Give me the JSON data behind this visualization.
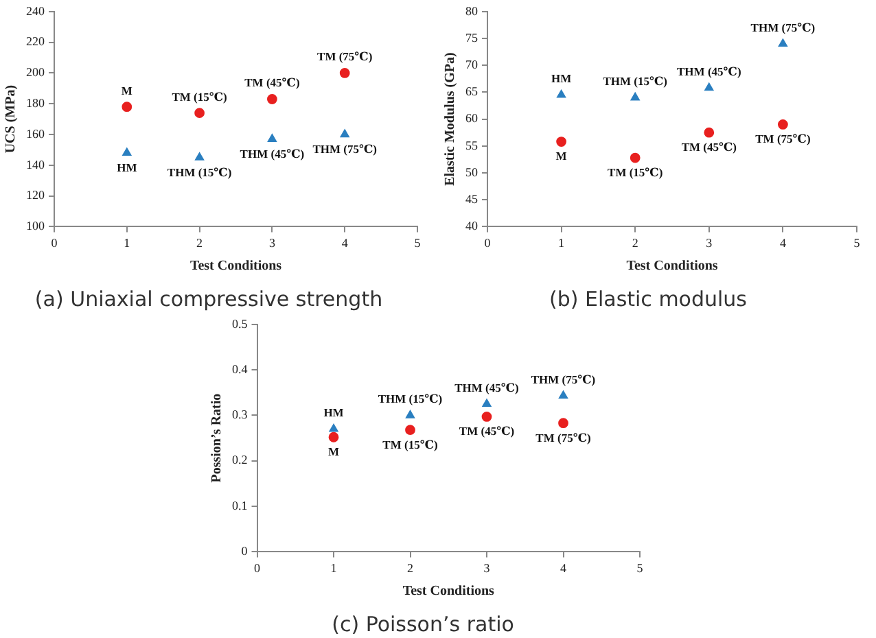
{
  "chart_data": [
    {
      "type": "scatter",
      "title": "(a) Uniaxial compressive strength",
      "xlabel": "Test Conditions",
      "ylabel": "UCS (MPa)",
      "x": [
        1,
        2,
        3,
        4
      ],
      "series": [
        {
          "color": "#e8201f",
          "marker": "circle",
          "values": [
            178,
            174,
            183,
            200
          ]
        },
        {
          "color": "#2a7fc0",
          "marker": "triangle",
          "values": [
            148,
            145,
            157,
            160
          ]
        }
      ],
      "xlim": [
        0,
        5
      ],
      "xticks": [
        0,
        1,
        2,
        3,
        4,
        5
      ],
      "ylim": [
        100,
        240
      ],
      "yticks": [
        100,
        120,
        140,
        160,
        180,
        200,
        220,
        240
      ],
      "grid": false,
      "legend": false,
      "annotations": [
        {
          "text": "M",
          "x": 1,
          "y": 178
        },
        {
          "text": "TM (15℃)",
          "x": 2,
          "y": 174
        },
        {
          "text": "TM (45℃)",
          "x": 3,
          "y": 183
        },
        {
          "text": "TM (75℃)",
          "x": 4,
          "y": 200
        },
        {
          "text": "HM",
          "x": 1,
          "y": 148
        },
        {
          "text": "THM (15℃)",
          "x": 2,
          "y": 145
        },
        {
          "text": "THM (45℃)",
          "x": 3,
          "y": 157
        },
        {
          "text": "THM (75℃)",
          "x": 4,
          "y": 160
        }
      ]
    },
    {
      "type": "scatter",
      "title": "(b) Elastic modulus",
      "xlabel": "Test Conditions",
      "ylabel": "Elastic Modulus (GPa)",
      "x": [
        1,
        2,
        3,
        4
      ],
      "series": [
        {
          "color": "#e8201f",
          "marker": "circle",
          "values": [
            55.8,
            52.8,
            57.5,
            59
          ]
        },
        {
          "color": "#2a7fc0",
          "marker": "triangle",
          "values": [
            64.5,
            64,
            65.8,
            74
          ]
        }
      ],
      "xlim": [
        0,
        5
      ],
      "xticks": [
        0,
        1,
        2,
        3,
        4,
        5
      ],
      "ylim": [
        40,
        80
      ],
      "yticks": [
        40,
        45,
        50,
        55,
        60,
        65,
        70,
        75,
        80
      ],
      "grid": false,
      "legend": false,
      "annotations": [
        {
          "text": "M",
          "x": 1,
          "y": 55.8
        },
        {
          "text": "TM (15℃)",
          "x": 2,
          "y": 52.8
        },
        {
          "text": "TM (45℃)",
          "x": 3,
          "y": 57.5
        },
        {
          "text": "TM (75℃)",
          "x": 4,
          "y": 59
        },
        {
          "text": "HM",
          "x": 1,
          "y": 64.5
        },
        {
          "text": "THM (15℃)",
          "x": 2,
          "y": 64
        },
        {
          "text": "THM (45℃)",
          "x": 3,
          "y": 65.8
        },
        {
          "text": "THM (75℃)",
          "x": 4,
          "y": 74
        }
      ]
    },
    {
      "type": "scatter",
      "title": "(c) Poisson’s ratio",
      "xlabel": "Test Conditions",
      "ylabel": "Possion’s Ratio",
      "x": [
        1,
        2,
        3,
        4
      ],
      "series": [
        {
          "color": "#e8201f",
          "marker": "circle",
          "values": [
            0.252,
            0.268,
            0.297,
            0.283
          ]
        },
        {
          "color": "#2a7fc0",
          "marker": "triangle",
          "values": [
            0.27,
            0.3,
            0.325,
            0.343
          ]
        }
      ],
      "xlim": [
        0,
        5
      ],
      "xticks": [
        0,
        1,
        2,
        3,
        4,
        5
      ],
      "ylim": [
        0,
        0.5
      ],
      "yticks": [
        0,
        0.1,
        0.2,
        0.3,
        0.4,
        0.5
      ],
      "grid": false,
      "legend": false,
      "annotations": [
        {
          "text": "M",
          "x": 1,
          "y": 0.252
        },
        {
          "text": "TM (15℃)",
          "x": 2,
          "y": 0.268
        },
        {
          "text": "TM (45℃)",
          "x": 3,
          "y": 0.297
        },
        {
          "text": "TM (75℃)",
          "x": 4,
          "y": 0.283
        },
        {
          "text": "HM",
          "x": 1,
          "y": 0.27
        },
        {
          "text": "THM (15℃)",
          "x": 2,
          "y": 0.3
        },
        {
          "text": "THM (45℃)",
          "x": 3,
          "y": 0.325
        },
        {
          "text": "THM (75℃)",
          "x": 4,
          "y": 0.343
        }
      ]
    }
  ]
}
